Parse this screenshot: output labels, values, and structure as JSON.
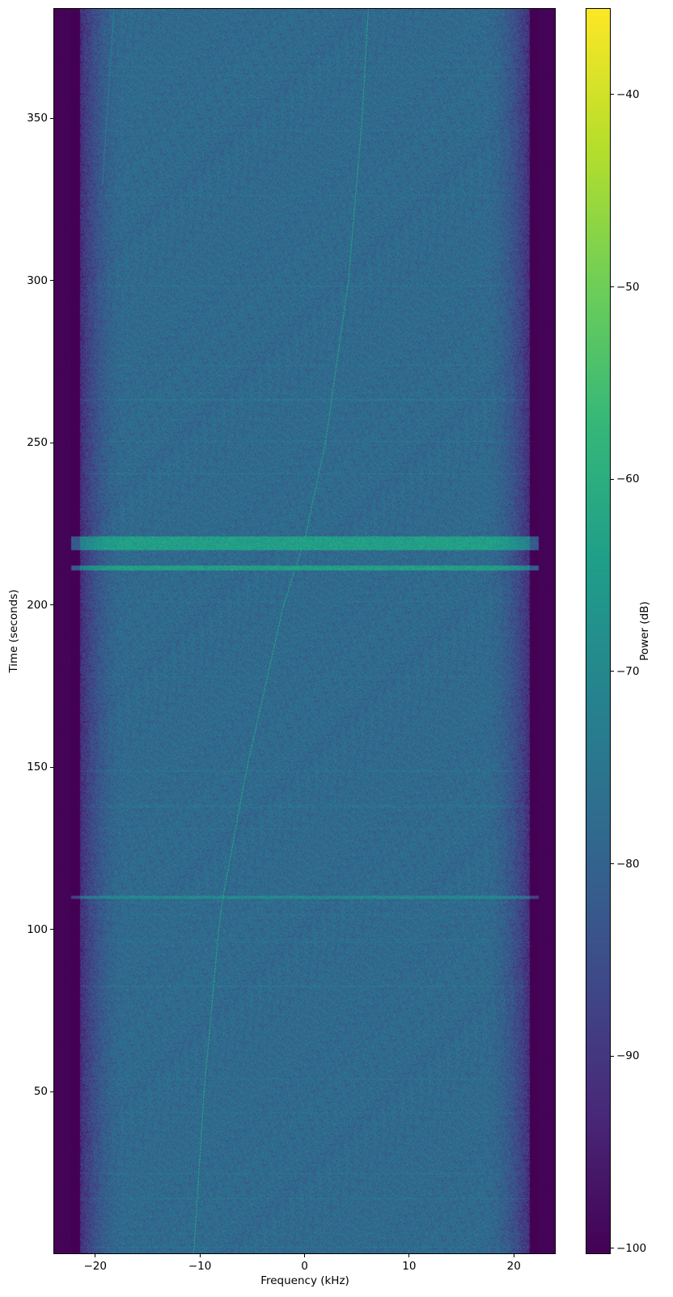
{
  "chart_data": {
    "type": "heatmap",
    "subtype": "spectrogram",
    "title": "",
    "xlabel": "Frequency (kHz)",
    "ylabel": "Time (seconds)",
    "xlim": [
      -24,
      24
    ],
    "ylim": [
      0,
      384
    ],
    "xticks": [
      -20,
      -10,
      0,
      10,
      20
    ],
    "yticks": [
      50,
      100,
      150,
      200,
      250,
      300,
      350
    ],
    "grid": false,
    "colormap": "viridis",
    "colorbar": {
      "label": "Power (dB)",
      "range": [
        -100.3,
        -35.5
      ],
      "ticks": [
        -40,
        -50,
        -60,
        -70,
        -80,
        -90,
        -100
      ],
      "placement": "right"
    },
    "noise_floor_db": -78,
    "passband_khz": [
      -21,
      21
    ],
    "out_of_band_db": -100,
    "signal_trace": {
      "power_db": -62,
      "points": [
        {
          "time": 0,
          "freq": -10.6
        },
        {
          "time": 50,
          "freq": -9.6
        },
        {
          "time": 100,
          "freq": -8.2
        },
        {
          "time": 110,
          "freq": -7.8
        },
        {
          "time": 150,
          "freq": -5.5
        },
        {
          "time": 200,
          "freq": -2.0
        },
        {
          "time": 220,
          "freq": 0.0
        },
        {
          "time": 250,
          "freq": 2.0
        },
        {
          "time": 300,
          "freq": 4.2
        },
        {
          "time": 350,
          "freq": 5.5
        },
        {
          "time": 384,
          "freq": 6.1
        }
      ]
    },
    "faint_trace": {
      "power_db": -70,
      "points": [
        {
          "time": 330,
          "freq": -19.3
        },
        {
          "time": 384,
          "freq": -18.2
        }
      ]
    },
    "horizontal_bands": [
      {
        "t_start": 217.0,
        "t_end": 221.3,
        "power_db": -64
      },
      {
        "t_start": 210.8,
        "t_end": 212.2,
        "power_db": -64
      },
      {
        "t_start": 109.5,
        "t_end": 110.5,
        "power_db": -70
      }
    ]
  }
}
